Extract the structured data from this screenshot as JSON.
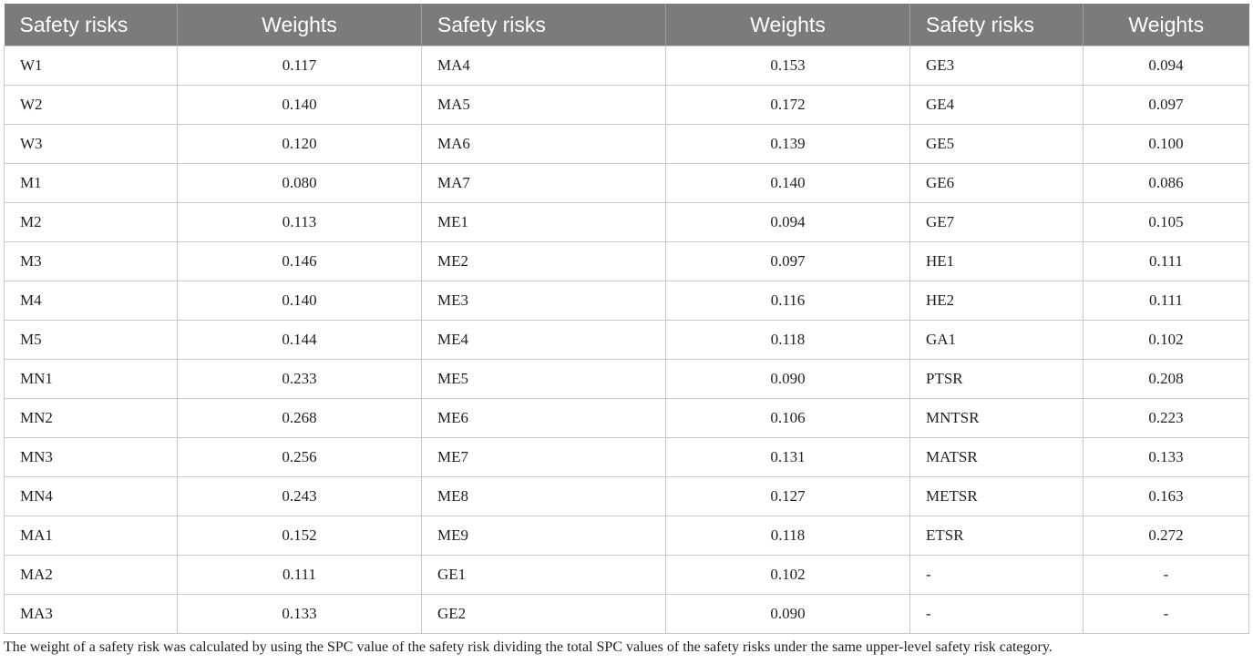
{
  "headers": [
    "Safety risks",
    "Weights",
    "Safety risks",
    "Weights",
    "Safety risks",
    "Weights"
  ],
  "rows": [
    [
      "W1",
      "0.117",
      "MA4",
      "0.153",
      "GE3",
      "0.094"
    ],
    [
      "W2",
      "0.140",
      "MA5",
      "0.172",
      "GE4",
      "0.097"
    ],
    [
      "W3",
      "0.120",
      "MA6",
      "0.139",
      "GE5",
      "0.100"
    ],
    [
      "M1",
      "0.080",
      "MA7",
      "0.140",
      "GE6",
      "0.086"
    ],
    [
      "M2",
      "0.113",
      "ME1",
      "0.094",
      "GE7",
      "0.105"
    ],
    [
      "M3",
      "0.146",
      "ME2",
      "0.097",
      "HE1",
      "0.111"
    ],
    [
      "M4",
      "0.140",
      "ME3",
      "0.116",
      "HE2",
      "0.111"
    ],
    [
      "M5",
      "0.144",
      "ME4",
      "0.118",
      "GA1",
      "0.102"
    ],
    [
      "MN1",
      "0.233",
      "ME5",
      "0.090",
      "PTSR",
      "0.208"
    ],
    [
      "MN2",
      "0.268",
      "ME6",
      "0.106",
      "MNTSR",
      "0.223"
    ],
    [
      "MN3",
      "0.256",
      "ME7",
      "0.131",
      "MATSR",
      "0.133"
    ],
    [
      "MN4",
      "0.243",
      "ME8",
      "0.127",
      "METSR",
      "0.163"
    ],
    [
      "MA1",
      "0.152",
      "ME9",
      "0.118",
      "ETSR",
      "0.272"
    ],
    [
      "MA2",
      "0.111",
      "GE1",
      "0.102",
      "-",
      "-"
    ],
    [
      "MA3",
      "0.133",
      "GE2",
      "0.090",
      "-",
      "-"
    ]
  ],
  "footnote": "The weight of a safety risk was calculated by using the SPC value of the safety risk dividing the total SPC values of the safety risks under the same upper-level safety risk category.",
  "colors": {
    "header_bg": "#7b7b7b",
    "header_text": "#ffffff",
    "grid": "#c8c8c8"
  }
}
